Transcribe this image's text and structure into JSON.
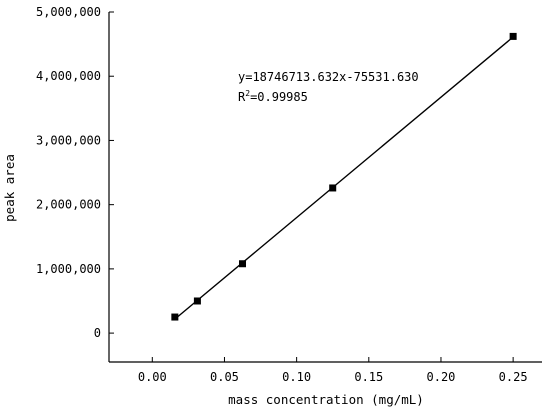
{
  "chart_data": {
    "type": "scatter",
    "xlabel": "mass concentration (mg/mL)",
    "ylabel": "peak area",
    "xlim": [
      -0.03,
      0.27
    ],
    "ylim": [
      -450000,
      5000000
    ],
    "x_ticks": [
      0.0,
      0.05,
      0.1,
      0.15,
      0.2,
      0.25
    ],
    "x_tick_labels": [
      "0.00",
      "0.05",
      "0.10",
      "0.15",
      "0.20",
      "0.25"
    ],
    "y_ticks": [
      0,
      1000000,
      2000000,
      3000000,
      4000000,
      5000000
    ],
    "y_tick_labels": [
      "0",
      "1,000,000",
      "2,000,000",
      "3,000,000",
      "4,000,000",
      "5,000,000"
    ],
    "points": [
      {
        "x": 0.015625,
        "y": 250000
      },
      {
        "x": 0.03125,
        "y": 500000
      },
      {
        "x": 0.0625,
        "y": 1080000
      },
      {
        "x": 0.125,
        "y": 2260000
      },
      {
        "x": 0.25,
        "y": 4620000
      }
    ],
    "fit": {
      "slope": 18746713.632,
      "intercept": -75531.63,
      "x_range": [
        0.015625,
        0.25
      ]
    },
    "annotation": {
      "equation": "y=18746713.632x-75531.630",
      "r2_base": "R",
      "r2_sup": "2",
      "r2_value": "=0.99985"
    },
    "grid": false,
    "legend": "none"
  }
}
